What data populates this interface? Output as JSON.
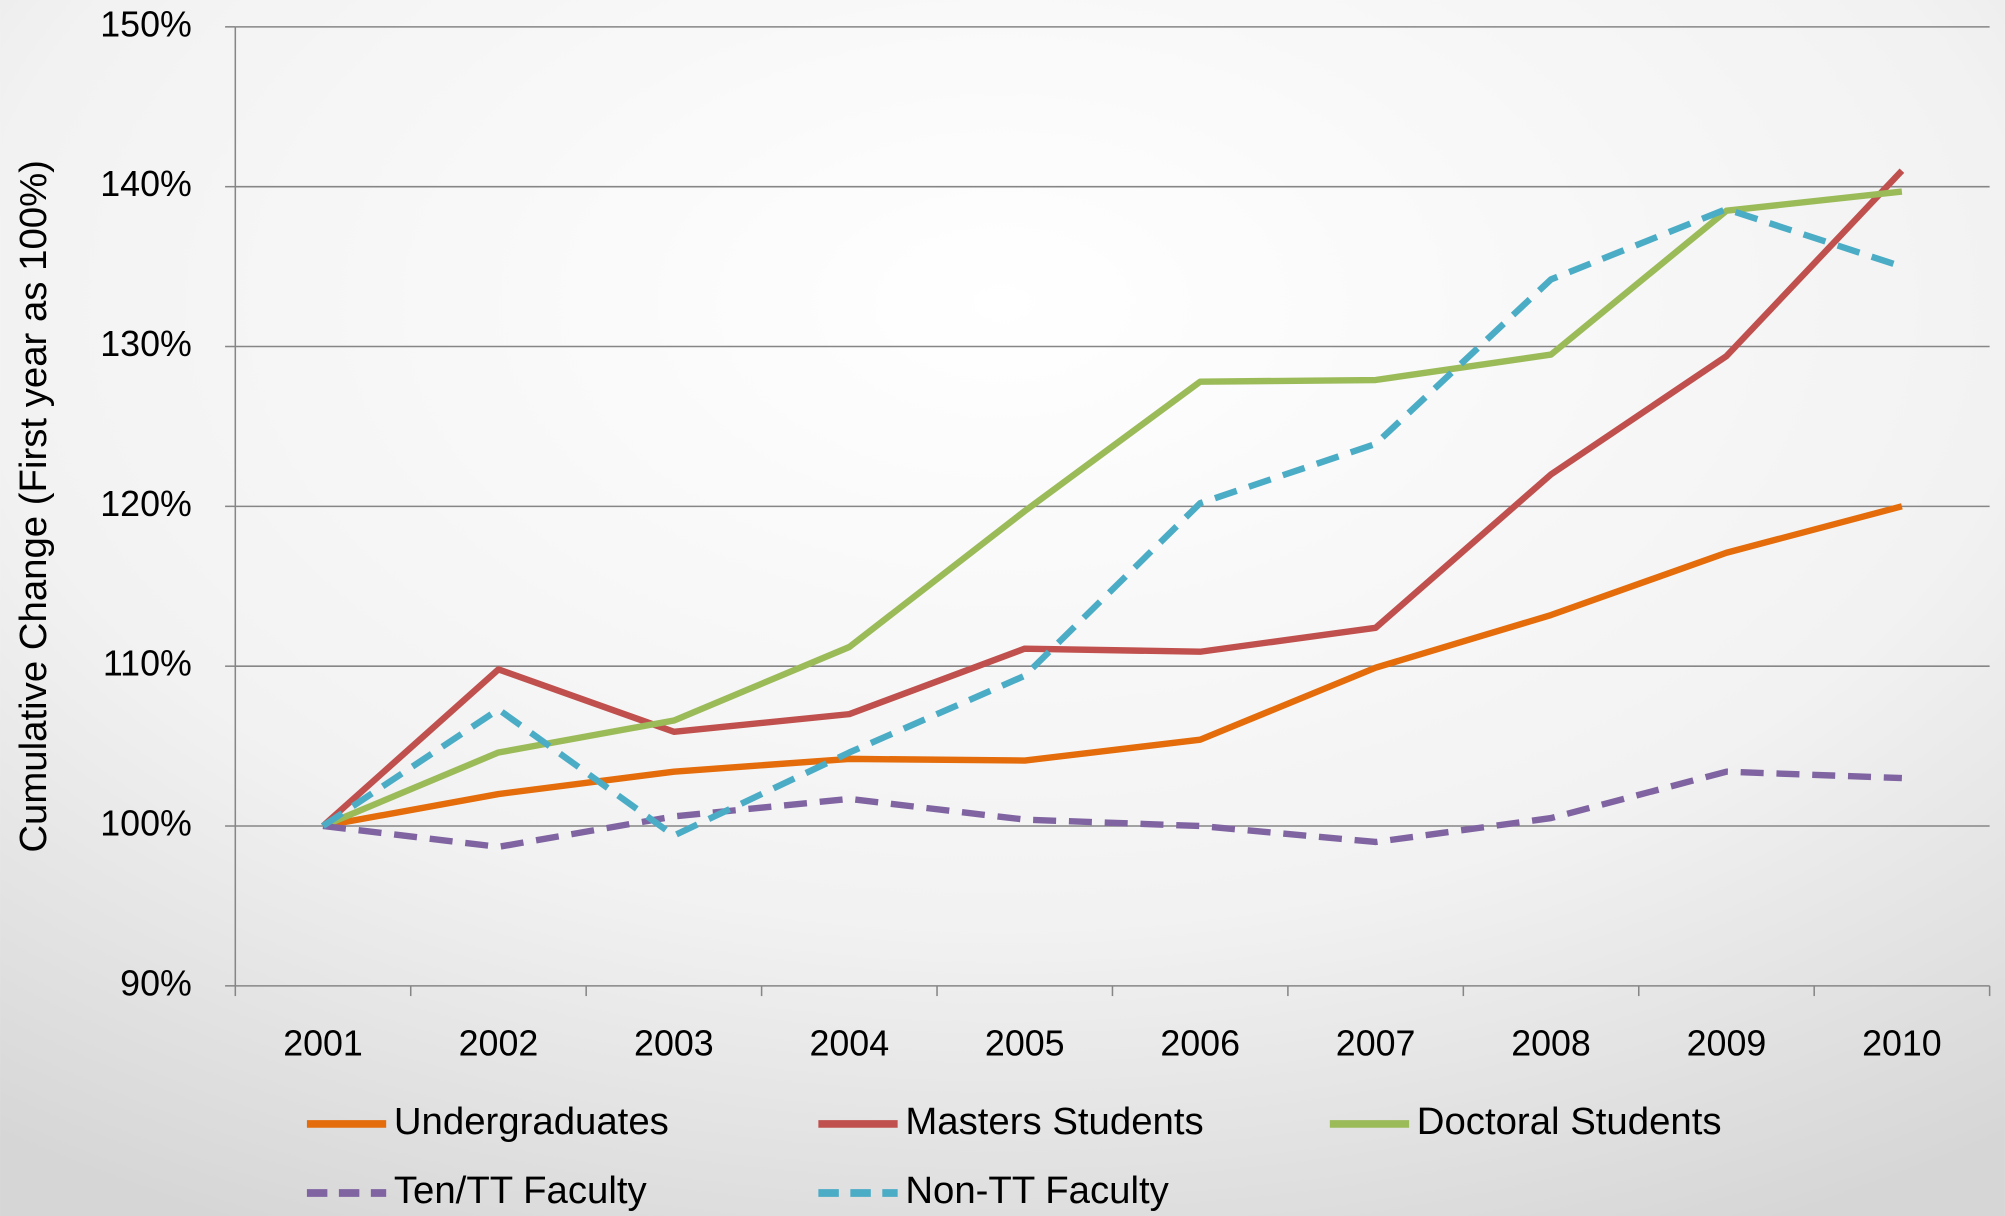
{
  "chart_data": {
    "type": "line",
    "y_label": "Cumulative Change (First year as 100%)",
    "categories": [
      "2001",
      "2002",
      "2003",
      "2004",
      "2005",
      "2006",
      "2007",
      "2008",
      "2009",
      "2010"
    ],
    "series": [
      {
        "name": "Undergraduates",
        "color": "#e46c0a",
        "dash": false,
        "values": [
          100,
          102.0,
          103.4,
          104.2,
          104.1,
          105.4,
          109.9,
          113.2,
          117.1,
          120.0
        ]
      },
      {
        "name": "Masters Students",
        "color": "#c0504d",
        "dash": false,
        "values": [
          100,
          109.8,
          105.9,
          107.0,
          111.1,
          110.9,
          112.4,
          122.0,
          129.4,
          141.0
        ]
      },
      {
        "name": "Doctoral Students",
        "color": "#9bbb59",
        "dash": false,
        "values": [
          100,
          104.6,
          106.6,
          111.2,
          119.7,
          127.8,
          127.9,
          129.5,
          138.5,
          139.7
        ]
      },
      {
        "name": "Ten/TT Faculty",
        "color": "#8064a2",
        "dash": true,
        "values": [
          100,
          98.7,
          100.6,
          101.7,
          100.4,
          100.0,
          99.0,
          100.5,
          103.4,
          103.0
        ]
      },
      {
        "name": "Non-TT Faculty",
        "color": "#4bacc6",
        "dash": true,
        "values": [
          100,
          107.3,
          99.4,
          104.6,
          109.4,
          120.2,
          123.9,
          134.2,
          138.6,
          135.0
        ]
      }
    ],
    "ylim": [
      90,
      150
    ],
    "yticks": [
      {
        "value": 90,
        "label": "90%"
      },
      {
        "value": 100,
        "label": "100%"
      },
      {
        "value": 110,
        "label": "110%"
      },
      {
        "value": 120,
        "label": "120%"
      },
      {
        "value": 130,
        "label": "130%"
      },
      {
        "value": 140,
        "label": "140%"
      },
      {
        "value": 150,
        "label": "150%"
      }
    ],
    "grid": true,
    "legend": "bottom"
  }
}
